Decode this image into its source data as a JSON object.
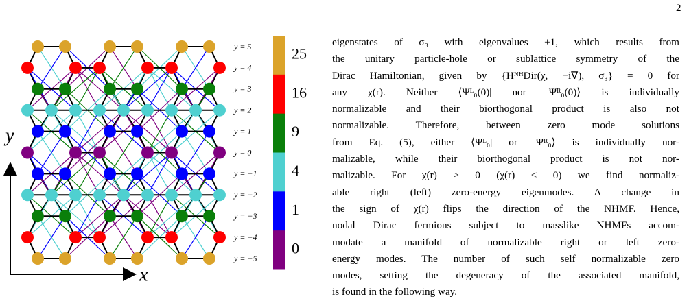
{
  "page_number": "2",
  "figure": {
    "axis_x": "x",
    "axis_y": "y",
    "row_labels": [
      "y = 5",
      "y = 4",
      "y = 3",
      "y = 2",
      "y = 1",
      "y = 0",
      "y = −1",
      "y = −2",
      "y = −3",
      "y = −4",
      "y = −5"
    ],
    "colorbar": [
      {
        "label": "25",
        "color": "#dba32a"
      },
      {
        "label": "16",
        "color": "#ff0000"
      },
      {
        "label": "9",
        "color": "#0a7f0a"
      },
      {
        "label": "4",
        "color": "#4fd0d0"
      },
      {
        "label": "1",
        "color": "#0000ff"
      },
      {
        "label": "0",
        "color": "#800080"
      }
    ]
  },
  "body": {
    "lines": [
      "eigenstates of σ₃ with eigenvalues ±1, which results from",
      "the unitary particle-hole or sublattice symmetry of the",
      "Dirac Hamiltonian, given by {HᴺᴴDir(χ, −i∇), σ₃} = 0 for",
      "any χ(r).  Neither ⟨Ψᴸ₀(0)| nor |Ψᴿ₀(0)⟩ is individually",
      "normalizable and their biorthogonal product is also not",
      "normalizable.  Therefore, between zero mode solutions",
      "from Eq. (5), either ⟨Ψᴸ₀| or |Ψᴿ₀⟩ is individually nor-",
      "malizable, while their biorthogonal product is not nor-",
      "malizable.  For χ(r) > 0 (χ(r) < 0) we find normaliz-",
      "able right (left) zero-energy eigenmodes.  A change in",
      "the sign of χ(r) flips the direction of the NHMF. Hence,",
      "nodal Dirac fermions subject to masslike NHMFs accom-",
      "modate a manifold of normalizable right or left zero-",
      "energy modes. The number of such self normalizable zero",
      "modes, setting the degeneracy of the associated manifold,",
      "is found in the following way."
    ]
  }
}
